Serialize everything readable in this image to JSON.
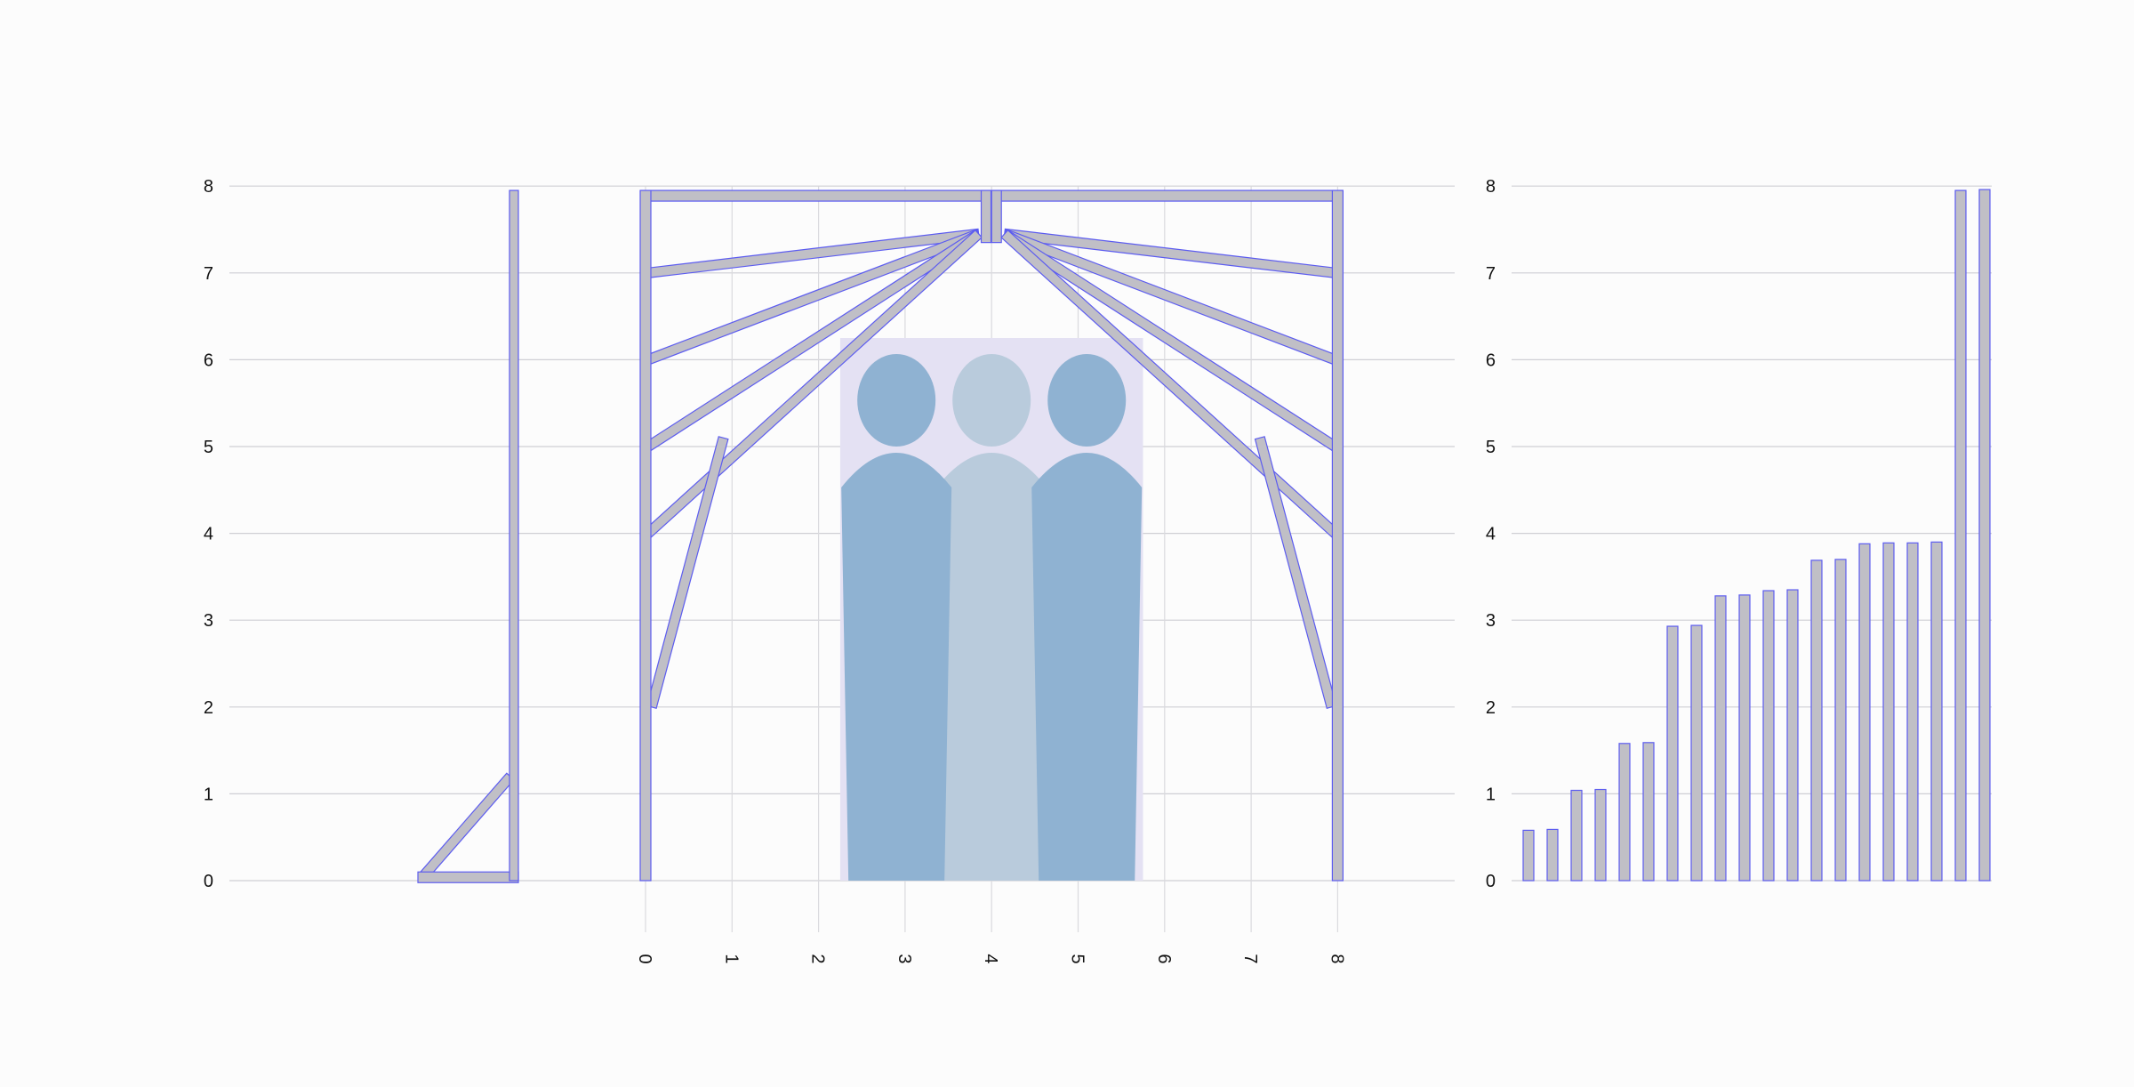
{
  "colors": {
    "background": "#fcfcfc",
    "member_fill": "#c0bfc6",
    "member_stroke": "#5c5cf0",
    "clearance_box": "#e4e1f3",
    "person_dark": "#8fb2d2",
    "person_light": "#b9cbdc",
    "grid": "#cfcfd4"
  },
  "frame_view": {
    "y_ticks": [
      "0",
      "1",
      "2",
      "3",
      "4",
      "5",
      "6",
      "7",
      "8"
    ],
    "x_ticks": [
      "0",
      "1",
      "2",
      "3",
      "4",
      "5",
      "6",
      "7",
      "8"
    ],
    "y_range": [
      0,
      8
    ],
    "x_range": [
      0,
      8
    ],
    "gable_rafter_ends": [
      7,
      6,
      5,
      4
    ],
    "left_strut": {
      "from": [
        0.07,
        2.0
      ],
      "to": [
        0.9,
        5.1
      ]
    },
    "right_strut": {
      "from": [
        7.93,
        2.0
      ],
      "to": [
        7.1,
        5.1
      ]
    },
    "ridge_height": 7.45,
    "clearance_zone": {
      "x": [
        2.25,
        5.75
      ],
      "y": [
        0,
        6.25
      ]
    },
    "people": [
      {
        "center_x": 2.9,
        "shade": "dark"
      },
      {
        "center_x": 4.0,
        "shade": "light"
      },
      {
        "center_x": 5.1,
        "shade": "dark"
      }
    ]
  },
  "side_view": {
    "post_height": 7.95,
    "brace_height": 1.2
  },
  "member_chart": {
    "y_ticks": [
      "0",
      "1",
      "2",
      "3",
      "4",
      "5",
      "6",
      "7",
      "8"
    ],
    "y_range": [
      0,
      8
    ],
    "values": [
      0.58,
      0.59,
      1.04,
      1.05,
      1.58,
      1.59,
      2.93,
      2.94,
      3.28,
      3.29,
      3.34,
      3.35,
      3.69,
      3.7,
      3.88,
      3.89,
      3.89,
      3.9,
      7.95,
      7.96
    ]
  }
}
